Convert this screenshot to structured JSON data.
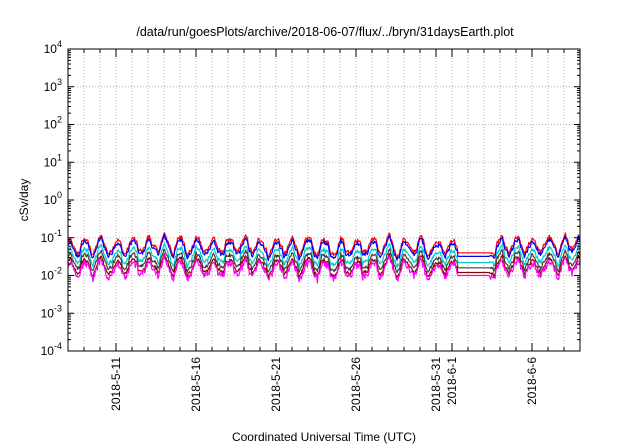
{
  "chart_data": {
    "type": "line",
    "title": "/data/run/goesPlots/archive/2018-06-07/flux/../bryn/31daysEarth.plot",
    "xlabel": "Coordinated Universal Time (UTC)",
    "ylabel": "cSv/day",
    "yscale": "log",
    "ylim": [
      0.0001,
      10000
    ],
    "xlim": [
      "2018-05-08",
      "2018-06-09"
    ],
    "grid": true,
    "y_ticks": [
      {
        "value": 0.0001,
        "base": "10",
        "exp": "-4"
      },
      {
        "value": 0.001,
        "base": "10",
        "exp": "-3"
      },
      {
        "value": 0.01,
        "base": "10",
        "exp": "-2"
      },
      {
        "value": 0.1,
        "base": "10",
        "exp": "-1"
      },
      {
        "value": 1,
        "base": "10",
        "exp": "0"
      },
      {
        "value": 10,
        "base": "10",
        "exp": "1"
      },
      {
        "value": 100,
        "base": "10",
        "exp": "2"
      },
      {
        "value": 1000,
        "base": "10",
        "exp": "3"
      },
      {
        "value": 10000,
        "base": "10",
        "exp": "4"
      }
    ],
    "x_ticks": [
      {
        "date": "2018-05-11",
        "label": "2018-5-11"
      },
      {
        "date": "2018-05-16",
        "label": "2018-5-16"
      },
      {
        "date": "2018-05-21",
        "label": "2018-5-21"
      },
      {
        "date": "2018-05-26",
        "label": "2018-5-26"
      },
      {
        "date": "2018-05-31",
        "label": "2018-5-31"
      },
      {
        "date": "2018-06-01",
        "label": "2018-6-1"
      },
      {
        "date": "2018-06-06",
        "label": "2018-6-6"
      }
    ],
    "x_grid_dates": [
      "2018-05-09",
      "2018-05-10",
      "2018-05-11",
      "2018-05-12",
      "2018-05-13",
      "2018-05-14",
      "2018-05-15",
      "2018-05-16",
      "2018-05-17",
      "2018-05-18",
      "2018-05-19",
      "2018-05-20",
      "2018-05-21",
      "2018-05-22",
      "2018-05-23",
      "2018-05-24",
      "2018-05-25",
      "2018-05-26",
      "2018-05-27",
      "2018-05-28",
      "2018-05-29",
      "2018-05-30",
      "2018-05-31",
      "2018-06-01",
      "2018-06-02",
      "2018-06-03",
      "2018-06-04",
      "2018-06-05",
      "2018-06-06",
      "2018-06-07",
      "2018-06-08"
    ],
    "data_gap": [
      "2018-06-01",
      "2018-06-03"
    ],
    "series": [
      {
        "color": "#ff0000",
        "gap_level": 0.04,
        "x": [
          "2018-05-08",
          "2018-05-10",
          "2018-05-12",
          "2018-05-14",
          "2018-05-16",
          "2018-05-18",
          "2018-05-20",
          "2018-05-22",
          "2018-05-24",
          "2018-05-26",
          "2018-05-28",
          "2018-05-30",
          "2018-06-01",
          "2018-06-03",
          "2018-06-05",
          "2018-06-07",
          "2018-06-09"
        ],
        "values": [
          0.055,
          0.065,
          0.06,
          0.07,
          0.065,
          0.06,
          0.062,
          0.058,
          0.06,
          0.065,
          0.06,
          0.062,
          0.06,
          0.055,
          0.06,
          0.065,
          0.07
        ]
      },
      {
        "color": "#0000ff",
        "gap_level": 0.032,
        "x": [
          "2018-05-08",
          "2018-05-10",
          "2018-05-12",
          "2018-05-14",
          "2018-05-16",
          "2018-05-18",
          "2018-05-20",
          "2018-05-22",
          "2018-05-24",
          "2018-05-26",
          "2018-05-28",
          "2018-05-30",
          "2018-06-01",
          "2018-06-03",
          "2018-06-05",
          "2018-06-07",
          "2018-06-09"
        ],
        "values": [
          0.045,
          0.055,
          0.05,
          0.06,
          0.055,
          0.05,
          0.052,
          0.048,
          0.05,
          0.055,
          0.05,
          0.052,
          0.05,
          0.045,
          0.05,
          0.055,
          0.06
        ]
      },
      {
        "color": "#00cccc",
        "gap_level": 0.022,
        "x": [
          "2018-05-08",
          "2018-05-10",
          "2018-05-12",
          "2018-05-14",
          "2018-05-16",
          "2018-05-18",
          "2018-05-20",
          "2018-05-22",
          "2018-05-24",
          "2018-05-26",
          "2018-05-28",
          "2018-05-30",
          "2018-06-01",
          "2018-06-03",
          "2018-06-05",
          "2018-06-07",
          "2018-06-09"
        ],
        "values": [
          0.03,
          0.035,
          0.032,
          0.036,
          0.034,
          0.032,
          0.033,
          0.031,
          0.032,
          0.034,
          0.032,
          0.033,
          0.032,
          0.03,
          0.032,
          0.034,
          0.036
        ]
      },
      {
        "color": "#404040",
        "gap_level": 0.016,
        "x": [
          "2018-05-08",
          "2018-05-10",
          "2018-05-12",
          "2018-05-14",
          "2018-05-16",
          "2018-05-18",
          "2018-05-20",
          "2018-05-22",
          "2018-05-24",
          "2018-05-26",
          "2018-05-28",
          "2018-05-30",
          "2018-06-01",
          "2018-06-03",
          "2018-06-05",
          "2018-06-07",
          "2018-06-09"
        ],
        "values": [
          0.022,
          0.025,
          0.023,
          0.026,
          0.024,
          0.023,
          0.024,
          0.022,
          0.023,
          0.024,
          0.023,
          0.024,
          0.023,
          0.022,
          0.023,
          0.024,
          0.025
        ]
      },
      {
        "color": "#8b0000",
        "gap_level": 0.012,
        "x": [
          "2018-05-08",
          "2018-05-10",
          "2018-05-12",
          "2018-05-14",
          "2018-05-16",
          "2018-05-18",
          "2018-05-20",
          "2018-05-22",
          "2018-05-24",
          "2018-05-26",
          "2018-05-28",
          "2018-05-30",
          "2018-06-01",
          "2018-06-03",
          "2018-06-05",
          "2018-06-07",
          "2018-06-09"
        ],
        "values": [
          0.016,
          0.018,
          0.017,
          0.019,
          0.018,
          0.017,
          0.018,
          0.016,
          0.017,
          0.018,
          0.017,
          0.018,
          0.017,
          0.016,
          0.017,
          0.018,
          0.019
        ]
      },
      {
        "color": "#ff00ff",
        "gap_level": 0.01,
        "x": [
          "2018-05-08",
          "2018-05-10",
          "2018-05-12",
          "2018-05-14",
          "2018-05-16",
          "2018-05-18",
          "2018-05-20",
          "2018-05-22",
          "2018-05-24",
          "2018-05-26",
          "2018-05-28",
          "2018-05-30",
          "2018-06-01",
          "2018-06-03",
          "2018-06-05",
          "2018-06-07",
          "2018-06-09"
        ],
        "values": [
          0.013,
          0.015,
          0.014,
          0.016,
          0.015,
          0.014,
          0.015,
          0.013,
          0.014,
          0.015,
          0.014,
          0.015,
          0.014,
          0.013,
          0.014,
          0.015,
          0.016
        ]
      }
    ]
  }
}
